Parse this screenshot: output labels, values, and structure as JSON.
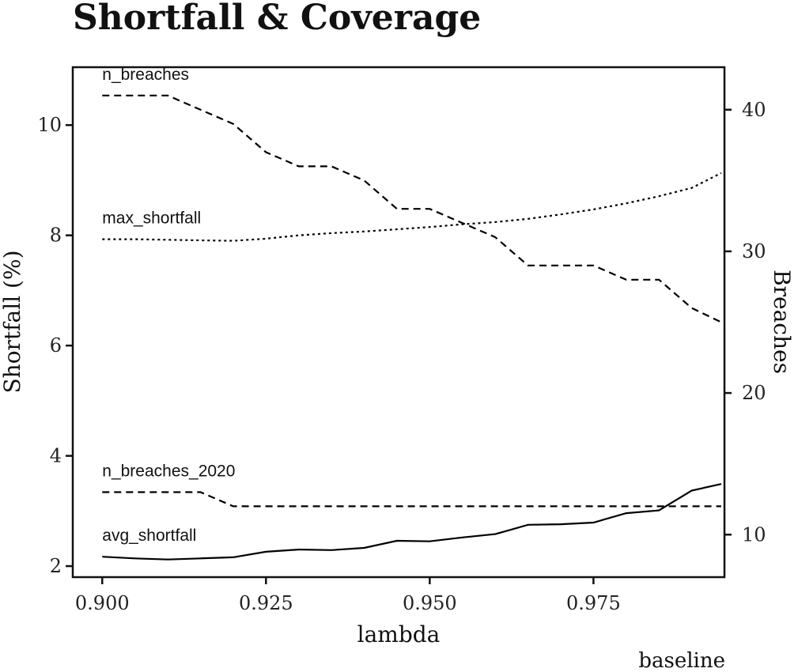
{
  "chart_data": {
    "type": "line",
    "title": "Shortfall & Coverage",
    "caption": "baseline",
    "xlabel": "lambda",
    "ylabel_left": "Shortfall (%)",
    "ylabel_right": "Breaches",
    "xlim": [
      0.8955,
      0.995
    ],
    "ylim_left": [
      1.8,
      11.05
    ],
    "ylim_right": [
      7,
      43
    ],
    "x_ticks": [
      0.9,
      0.925,
      0.95,
      0.975
    ],
    "x_tick_labels": [
      "0.900",
      "0.925",
      "0.950",
      "0.975"
    ],
    "y_left_ticks": [
      2,
      4,
      6,
      8,
      10
    ],
    "y_right_ticks": [
      10,
      20,
      30,
      40
    ],
    "grid": true,
    "legend": "none",
    "x": [
      0.9,
      0.905,
      0.91,
      0.915,
      0.92,
      0.925,
      0.93,
      0.935,
      0.94,
      0.945,
      0.95,
      0.955,
      0.96,
      0.965,
      0.97,
      0.975,
      0.98,
      0.985,
      0.99,
      0.9945
    ],
    "series": [
      {
        "name": "n_breaches",
        "axis": "right",
        "dash": "dashed",
        "values": [
          41,
          41,
          41,
          40,
          39,
          37,
          36,
          36,
          35,
          33,
          33,
          32,
          31,
          29,
          29,
          29,
          28,
          28,
          26,
          25
        ]
      },
      {
        "name": "max_shortfall",
        "axis": "left",
        "dash": "dotted",
        "values": [
          7.93,
          7.93,
          7.92,
          7.91,
          7.9,
          7.94,
          8.0,
          8.04,
          8.07,
          8.11,
          8.15,
          8.2,
          8.24,
          8.3,
          8.38,
          8.47,
          8.58,
          8.71,
          8.86,
          9.13
        ]
      },
      {
        "name": "n_breaches_2020",
        "axis": "right",
        "dash": "dashed",
        "values": [
          13,
          13,
          13,
          13,
          12,
          12,
          12,
          12,
          12,
          12,
          12,
          12,
          12,
          12,
          12,
          12,
          12,
          12,
          12,
          12
        ]
      },
      {
        "name": "avg_shortfall",
        "axis": "left",
        "dash": "solid",
        "values": [
          2.17,
          2.14,
          2.12,
          2.14,
          2.16,
          2.26,
          2.3,
          2.29,
          2.33,
          2.46,
          2.45,
          2.52,
          2.58,
          2.75,
          2.76,
          2.79,
          2.96,
          3.01,
          3.37,
          3.49
        ]
      }
    ]
  }
}
